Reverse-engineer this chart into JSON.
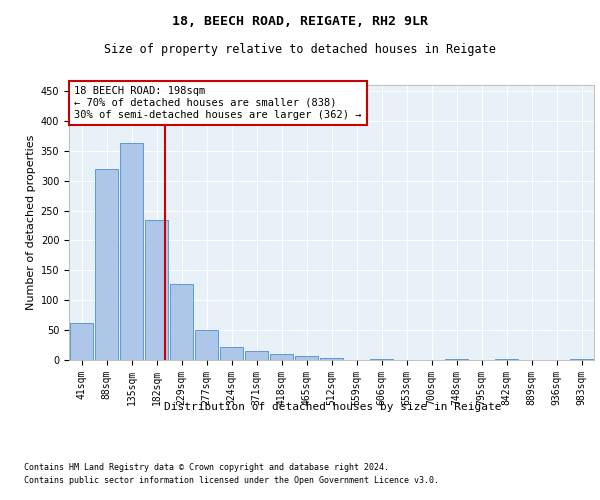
{
  "title1": "18, BEECH ROAD, REIGATE, RH2 9LR",
  "title2": "Size of property relative to detached houses in Reigate",
  "xlabel": "Distribution of detached houses by size in Reigate",
  "ylabel": "Number of detached properties",
  "bar_color": "#aec6e8",
  "bar_edge_color": "#5b9bd5",
  "background_color": "#e8f0f8",
  "grid_color": "#ffffff",
  "annotation_box_color": "#cc0000",
  "property_line_color": "#cc0000",
  "categories": [
    "41sqm",
    "88sqm",
    "135sqm",
    "182sqm",
    "229sqm",
    "277sqm",
    "324sqm",
    "371sqm",
    "418sqm",
    "465sqm",
    "512sqm",
    "559sqm",
    "606sqm",
    "653sqm",
    "700sqm",
    "748sqm",
    "795sqm",
    "842sqm",
    "889sqm",
    "936sqm",
    "983sqm"
  ],
  "values": [
    62,
    320,
    363,
    234,
    127,
    50,
    22,
    15,
    10,
    7,
    3,
    0,
    2,
    0,
    0,
    1,
    0,
    1,
    0,
    0,
    1
  ],
  "ylim": [
    0,
    460
  ],
  "yticks": [
    0,
    50,
    100,
    150,
    200,
    250,
    300,
    350,
    400,
    450
  ],
  "property_label": "18 BEECH ROAD: 198sqm",
  "annotation_line1": "← 70% of detached houses are smaller (838)",
  "annotation_line2": "30% of semi-detached houses are larger (362) →",
  "footnote1": "Contains HM Land Registry data © Crown copyright and database right 2024.",
  "footnote2": "Contains public sector information licensed under the Open Government Licence v3.0.",
  "title1_fontsize": 9.5,
  "title2_fontsize": 8.5,
  "axis_label_fontsize": 8,
  "tick_fontsize": 7,
  "annotation_fontsize": 7.5,
  "footnote_fontsize": 6
}
